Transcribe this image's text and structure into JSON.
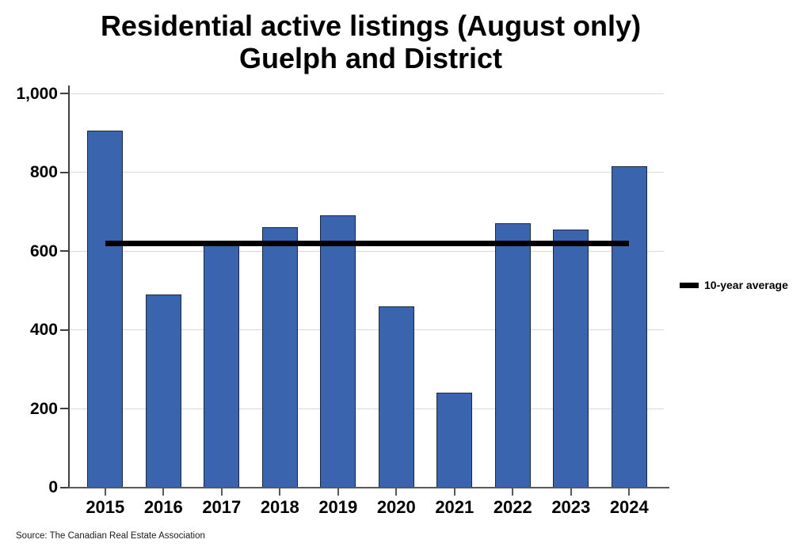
{
  "title": {
    "line1": "Residential active listings (August only)",
    "line2": "Guelph and District"
  },
  "legend": {
    "label": "10-year average"
  },
  "source": "Source: The Canadian Real Estate Association",
  "colors": {
    "bar_fill": "#3A64AD",
    "bar_border": "#1A2742",
    "average_line": "#000000",
    "gridline": "#D9D9D9",
    "axis": "#595959"
  },
  "chart_data": {
    "type": "bar",
    "title": "Residential active listings (August only) Guelph and District",
    "categories": [
      "2015",
      "2016",
      "2017",
      "2018",
      "2019",
      "2020",
      "2021",
      "2022",
      "2023",
      "2024"
    ],
    "values": [
      905,
      490,
      615,
      660,
      690,
      460,
      240,
      670,
      655,
      815
    ],
    "series_name": "Residential active listings",
    "average_line": {
      "label": "10-year average",
      "value": 620
    },
    "xlabel": "",
    "ylabel": "",
    "ylim": [
      0,
      1000
    ],
    "yticks": [
      0,
      200,
      400,
      600,
      800,
      1000
    ],
    "ytick_labels": [
      "0",
      "200",
      "400",
      "600",
      "800",
      "1,000"
    ],
    "grid": true,
    "legend_position": "right"
  }
}
